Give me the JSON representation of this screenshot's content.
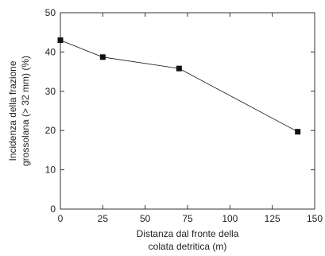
{
  "chart_data": {
    "type": "line",
    "title": "",
    "xlabel_lines": [
      "Distanza dal fronte della",
      "colata detritica (m)"
    ],
    "ylabel_lines": [
      "Incidenza della frazione",
      "grossolana (> 32 mm) (%)"
    ],
    "xlim": [
      0,
      150
    ],
    "ylim": [
      0,
      50
    ],
    "xticks": [
      0,
      25,
      50,
      75,
      100,
      125,
      150
    ],
    "yticks": [
      0,
      10,
      20,
      30,
      40,
      50
    ],
    "grid": false,
    "legend": "none",
    "series": [
      {
        "x": [
          0,
          25,
          70,
          140
        ],
        "y": [
          43,
          38.7,
          35.8,
          19.7
        ],
        "marker": "square",
        "color": "#111111"
      }
    ]
  }
}
